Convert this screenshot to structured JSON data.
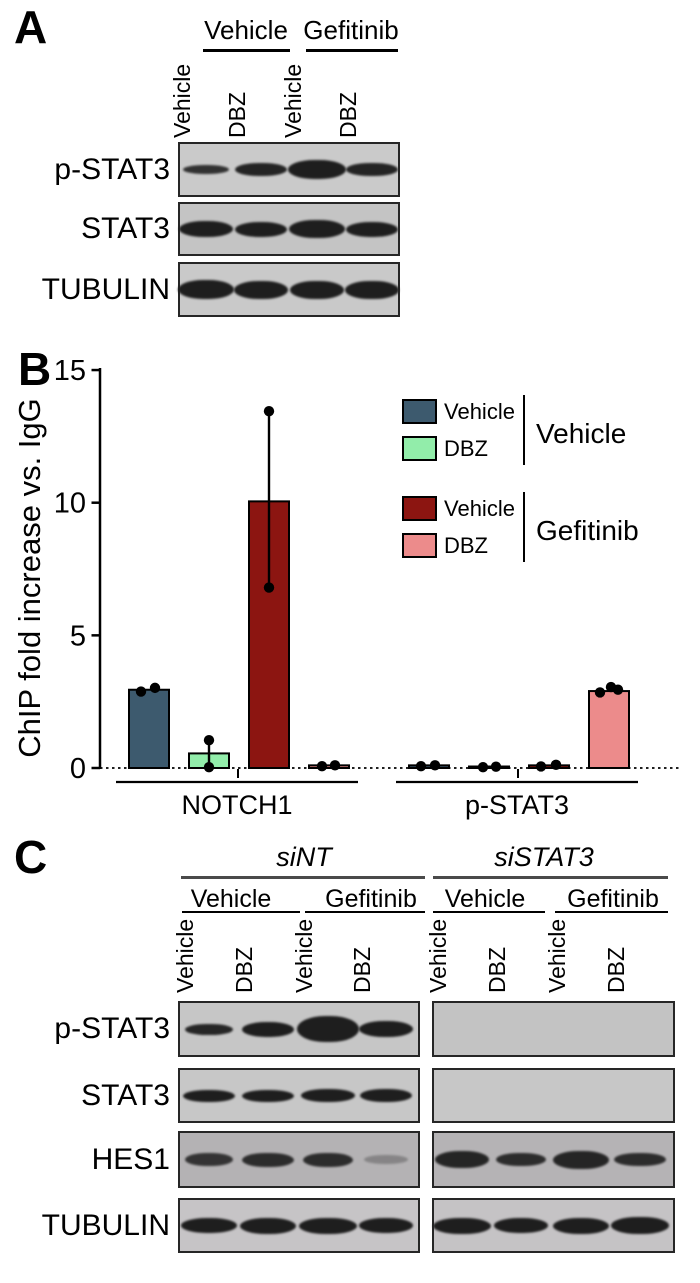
{
  "panels": {
    "A": {
      "label": "A",
      "treatment_groups": [
        "Vehicle",
        "Gefitinib"
      ],
      "lane_labels": [
        "Vehicle",
        "DBZ",
        "Vehicle",
        "DBZ"
      ],
      "blots": [
        {
          "label": "p-STAT3",
          "bands": [
            {
              "w": 46,
              "h": 9,
              "o": 0.88
            },
            {
              "w": 52,
              "h": 13,
              "o": 0.96
            },
            {
              "w": 58,
              "h": 19,
              "o": 1
            },
            {
              "w": 52,
              "h": 13,
              "o": 0.96
            }
          ]
        },
        {
          "label": "STAT3",
          "bands": [
            {
              "w": 54,
              "h": 16,
              "o": 1
            },
            {
              "w": 52,
              "h": 15,
              "o": 1
            },
            {
              "w": 56,
              "h": 18,
              "o": 1
            },
            {
              "w": 52,
              "h": 15,
              "o": 1
            }
          ]
        },
        {
          "label": "TUBULIN",
          "bands": [
            {
              "w": 56,
              "h": 19,
              "o": 1
            },
            {
              "w": 54,
              "h": 18,
              "o": 1
            },
            {
              "w": 54,
              "h": 18,
              "o": 1
            },
            {
              "w": 54,
              "h": 18,
              "o": 1
            }
          ]
        }
      ]
    },
    "B": {
      "label": "B"
    },
    "C": {
      "label": "C",
      "sirna_groups": [
        "siNT",
        "siSTAT3"
      ],
      "treatment_groups": [
        "Vehicle",
        "Gefitinib",
        "Vehicle",
        "Gefitinib"
      ],
      "lane_labels": [
        "Vehicle",
        "DBZ",
        "Vehicle",
        "DBZ",
        "Vehicle",
        "DBZ",
        "Vehicle",
        "DBZ"
      ],
      "blots": [
        {
          "label": "p-STAT3",
          "left_bands": [
            {
              "w": 48,
              "h": 11,
              "o": 0.95
            },
            {
              "w": 52,
              "h": 15,
              "o": 1
            },
            {
              "w": 62,
              "h": 26,
              "o": 1
            },
            {
              "w": 54,
              "h": 16,
              "o": 1
            }
          ],
          "right_bands": []
        },
        {
          "label": "STAT3",
          "left_bands": [
            {
              "w": 52,
              "h": 12,
              "o": 1
            },
            {
              "w": 52,
              "h": 12,
              "o": 1
            },
            {
              "w": 54,
              "h": 13,
              "o": 1
            },
            {
              "w": 52,
              "h": 13,
              "o": 1
            }
          ],
          "right_bands": []
        },
        {
          "label": "HES1",
          "left_bands": [
            {
              "w": 48,
              "h": 13,
              "o": 0.85
            },
            {
              "w": 52,
              "h": 14,
              "o": 0.9
            },
            {
              "w": 50,
              "h": 14,
              "o": 0.9
            },
            {
              "w": 44,
              "h": 9,
              "o": 0.3
            }
          ],
          "right_bands": [
            {
              "w": 54,
              "h": 17,
              "o": 0.95
            },
            {
              "w": 50,
              "h": 13,
              "o": 0.9
            },
            {
              "w": 56,
              "h": 18,
              "o": 0.95
            },
            {
              "w": 52,
              "h": 13,
              "o": 0.9
            }
          ]
        },
        {
          "label": "TUBULIN",
          "left_bands": [
            {
              "w": 56,
              "h": 15,
              "o": 1
            },
            {
              "w": 56,
              "h": 16,
              "o": 1
            },
            {
              "w": 58,
              "h": 16,
              "o": 1
            },
            {
              "w": 54,
              "h": 15,
              "o": 1
            }
          ],
          "right_bands": [
            {
              "w": 58,
              "h": 16,
              "o": 1
            },
            {
              "w": 54,
              "h": 15,
              "o": 1
            },
            {
              "w": 56,
              "h": 16,
              "o": 1
            },
            {
              "w": 58,
              "h": 17,
              "o": 1
            }
          ]
        }
      ]
    }
  },
  "chart_data": {
    "type": "bar",
    "title": "",
    "xlabel": "",
    "ylabel": "ChIP fold increase vs. IgG",
    "ylim": [
      0,
      15
    ],
    "yticks": [
      "0",
      "5",
      "10",
      "15"
    ],
    "grid": false,
    "legend_position": "upper right",
    "categories": [
      "NOTCH1",
      "p-STAT3"
    ],
    "series": [
      {
        "name": "Vehicle + Vehicle",
        "color": "#3d5a6e",
        "values": [
          2.95,
          0.1
        ]
      },
      {
        "name": "Vehicle + DBZ",
        "color": "#92edaa",
        "values": [
          0.55,
          0.05
        ]
      },
      {
        "name": "Gefitinib + Vehicle",
        "color": "#8c1511",
        "values": [
          10.05,
          0.1
        ]
      },
      {
        "name": "Gefitinib + DBZ",
        "color": "#ec8b8b",
        "values": [
          0.1,
          2.9
        ]
      }
    ],
    "error_bars": [
      [
        null,
        null
      ],
      [
        [
          0.03,
          1.05
        ],
        null
      ],
      [
        [
          6.8,
          13.45
        ],
        null
      ],
      [
        null,
        null
      ]
    ],
    "points": [
      [
        [
          [
            -8,
            2.88
          ],
          [
            6,
            3.02
          ]
        ],
        [
          [
            -8,
            0.07
          ],
          [
            6,
            0.1
          ]
        ]
      ],
      [
        [
          [
            0,
            0.03
          ],
          [
            0,
            1.05
          ]
        ],
        [
          [
            -6,
            0.03
          ],
          [
            7,
            0.05
          ]
        ]
      ],
      [
        [
          [
            0,
            6.8
          ],
          [
            0,
            13.45
          ]
        ],
        [
          [
            -8,
            0.06
          ],
          [
            7,
            0.12
          ]
        ]
      ],
      [
        [
          [
            -7,
            0.07
          ],
          [
            6,
            0.1
          ]
        ],
        [
          [
            -9,
            2.85
          ],
          [
            2,
            3.05
          ],
          [
            9,
            2.95
          ]
        ]
      ]
    ],
    "legend": {
      "blocks": [
        {
          "group": "Vehicle",
          "items": [
            {
              "label": "Vehicle",
              "color": "#3d5a6e"
            },
            {
              "label": "DBZ",
              "color": "#92edaa"
            }
          ]
        },
        {
          "group": "Gefitinib",
          "items": [
            {
              "label": "Vehicle",
              "color": "#8c1511"
            },
            {
              "label": "DBZ",
              "color": "#ec8b8b"
            }
          ]
        }
      ]
    },
    "zero_line": "dotted"
  }
}
